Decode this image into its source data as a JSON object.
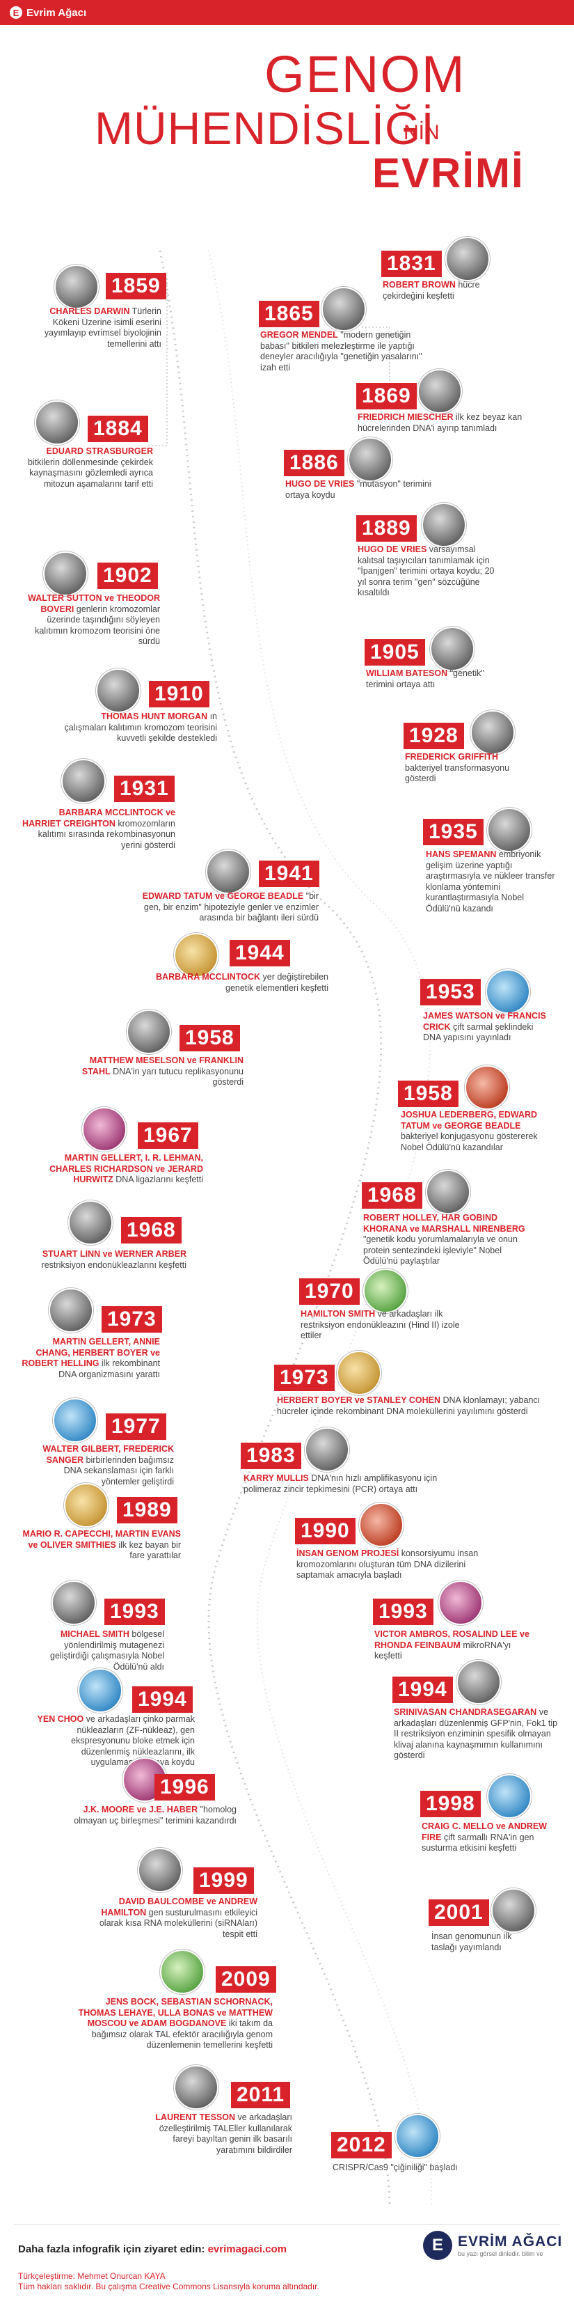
{
  "topbar": {
    "site_name": "Evrim Ağacı",
    "logo_letter": "E"
  },
  "title": {
    "line1": "GENOM",
    "line2": "MÜHENDİSLİĞİ",
    "suffix": "NİN",
    "line3": "EVRİMİ"
  },
  "events": {
    "e1859": {
      "year": "1859",
      "hl": "CHARLES DARWIN",
      "text": " Türlerin Kökeni Üzerine isimli eserini yayımlayıp evrimsel biyolojinin temellerini attı"
    },
    "e1831": {
      "year": "1831",
      "hl": "ROBERT BROWN",
      "text": " hücre çekirdeğini keşfetti"
    },
    "e1865": {
      "year": "1865",
      "hl": "GREGOR MENDEL",
      "text": " \"modern genetiğin babası\" bitkileri melezleştirme ile yaptığı deneyler aracılığıyla \"genetiğin yasalarını\" izah etti"
    },
    "e1884": {
      "year": "1884",
      "hl": "EDUARD STRASBURGER",
      "text": " bitkilerin döllenmesinde çekirdek kaynaşmasını gözlemledi ayrıca mitozun aşamalarını tarif etti"
    },
    "e1869": {
      "year": "1869",
      "hl": "FRIEDRICH MIESCHER",
      "text": " ilk kez beyaz kan hücrelerinden DNA'i ayırıp tanımladı"
    },
    "e1886": {
      "year": "1886",
      "hl": "HUGO DE VRIES",
      "text": " \"mutasyon\" terimini ortaya koydu"
    },
    "e1889": {
      "year": "1889",
      "hl": "HUGO DE VRIES",
      "text": " varsayımsal kalıtsal taşıyıcıları tanımlamak için \"İpanjgen\" terimini ortaya koydu; 20 yıl sonra terim \"gen\" sözcüğüne kısaltıldı"
    },
    "e1902": {
      "year": "1902",
      "hl": "WALTER SUTTON ve THEODOR BOVERI",
      "text": " genlerin kromozomlar üzerinde taşındığını söyleyen kalıtımın kromozom teorisini öne sürdü"
    },
    "e1905": {
      "year": "1905",
      "hl": "WILLIAM BATESON",
      "text": " \"genetik\" terimini ortaya attı"
    },
    "e1910": {
      "year": "1910",
      "hl": "THOMAS HUNT MORGAN",
      "text": " ın çalışmaları kalıtımın kromozom teorisini kuvvetli şekilde destekledi"
    },
    "e1928": {
      "year": "1928",
      "hl": "FREDERICK GRIFFITH",
      "text": " bakteriyel transformasyonu gösterdi"
    },
    "e1931": {
      "year": "1931",
      "hl": "BARBARA MCCLINTOCK ve HARRIET CREIGHTON",
      "text": " kromozomların kalıtımı sırasında rekombinasyonun yerini gösterdi"
    },
    "e1935": {
      "year": "1935",
      "hl": "HANS SPEMANN",
      "text": " embriyonik gelişim üzerine yaptığı araştırmasıyla ve nükleer transfer klonlama yöntemini kurantlaştırmasıyla Nobel Ödülü'nü kazandı"
    },
    "e1941": {
      "year": "1941",
      "hl": "EDWARD TATUM ve GEORGE BEADLE",
      "text": " \"bir gen, bir enzim\" hipoteziyle genler ve enzimler arasında bir bağlantı ileri sürdü"
    },
    "e1944": {
      "year": "1944",
      "hl": "BARBARA MCCLINTOCK",
      "text": " yer değiştirebilen genetik elementleri keşfetti"
    },
    "e1953": {
      "year": "1953",
      "hl": "JAMES WATSON ve FRANCIS CRICK",
      "text": " çift sarmal şeklindeki DNA yapısını yayınladı"
    },
    "e1958a": {
      "year": "1958",
      "hl": "MATTHEW MESELSON ve FRANKLIN STAHL",
      "text": " DNA'in yarı tutucu replikasyonunu gösterdi"
    },
    "e1958b": {
      "year": "1958",
      "hl": "JOSHUA LEDERBERG, EDWARD TATUM ve GEORGE BEADLE",
      "text": " bakteriyel konjugasyonu göstererek Nobel Ödülü'nü kazandılar"
    },
    "e1967": {
      "year": "1967",
      "hl": "MARTIN GELLERT, I. R. LEHMAN, CHARLES RICHARDSON ve JERARD HURWITZ",
      "text": " DNA ligazlarını keşfetti"
    },
    "e1968a": {
      "year": "1968",
      "hl": "ROBERT HOLLEY, HAR GOBIND KHORANA ve MARSHALL NIRENBERG",
      "text": " \"genetik kodu yorumlamalarıyla ve onun protein sentezindeki işleviyle\" Nobel Ödülü'nü paylaştılar"
    },
    "e1968b": {
      "year": "1968",
      "hl": "STUART LINN ve WERNER ARBER",
      "text": " restriksiyon endonükleazlarını keşfetti"
    },
    "e1970": {
      "year": "1970",
      "hl": "HAMILTON SMITH",
      "text": " ve arkadaşları ilk restriksiyon endonükleazını (Hind II) izole ettiler"
    },
    "e1973a": {
      "year": "1973",
      "hl": "MARTIN GELLERT, ANNIE CHANG, HERBERT BOYER ve ROBERT HELLING",
      "text": " ilk rekombinant DNA organizmasını yarattı"
    },
    "e1973b": {
      "year": "1973",
      "hl": "HERBERT BOYER ve STANLEY COHEN",
      "text": " DNA klonlamayı; yabancı hücreler içinde rekombinant DNA moleküllerini yayılımını gösterdi"
    },
    "e1977": {
      "year": "1977",
      "hl": "WALTER GILBERT, FREDERICK SANGER",
      "text": " birbirlerinden bağımsız DNA sekanslaması için farklı yöntemler geliştirdi"
    },
    "e1983": {
      "year": "1983",
      "hl": "KARRY MULLIS",
      "text": " DNA'nın hızlı amplifikasyonu için polimeraz zincir tepkimesini (PCR) ortaya attı"
    },
    "e1989": {
      "year": "1989",
      "hl": "MARIO R. CAPECCHI, MARTIN EVANS ve OLIVER SMITHIES",
      "text": " ilk kez bayan bir fare yarattılar"
    },
    "e1990": {
      "year": "1990",
      "hl": "İNSAN GENOM PROJESİ",
      "text": " konsorsiyumu insan kromozomlarını oluşturan tüm DNA dizilerini saptamak amacıyla başladı"
    },
    "e1993a": {
      "year": "1993",
      "hl": "MICHAEL SMITH",
      "text": " bölgesel yönlendirilmiş mutagenezi geliştirdiği çalışmasıyla Nobel Ödülü'nü aldı"
    },
    "e1993b": {
      "year": "1993",
      "hl": "VICTOR AMBROS, ROSALIND LEE ve RHONDA FEINBAUM",
      "text": " mikroRNA'yı keşfetti"
    },
    "e1994a": {
      "year": "1994",
      "hl": "YEN CHOO",
      "text": " ve arkadaşları çinko parmak nükleazların (ZF-nükleaz), gen ekspresyonunu bloke etmek için düzenlenmiş nükleazlarını, ilk uygulamasını ortaya koydu"
    },
    "e1994b": {
      "year": "1994",
      "hl": "SRINIVASAN CHANDRASEGARAN",
      "text": " ve arkadaşları düzenlenmiş GFP'nin, Fok1 tip II restriksiyon enziminin spesifik olmayan klivaj alanına kaynaşmımın kullanımını gösterdi"
    },
    "e1996": {
      "year": "1996",
      "hl": "J.K. MOORE ve J.E. HABER",
      "text": " \"homolog olmayan uç birleşmesi\" terimini kazandırdı"
    },
    "e1998": {
      "year": "1998",
      "hl": "CRAIG C. MELLO ve ANDREW FIRE",
      "text": " çift sarmallı RNA'in gen susturma etkisini keşfetti"
    },
    "e1999": {
      "year": "1999",
      "hl": "DAVID BAULCOMBE ve ANDREW HAMILTON",
      "text": " gen susturulmasını etkileyici olarak kısa RNA moleküllerini (siRNAları) tespit etti"
    },
    "e2001": {
      "year": "2001",
      "hl": "",
      "text": "İnsan genomunun ilk taslağı yayımlandı"
    },
    "e2009": {
      "year": "2009",
      "hl": "JENS BOCK, SEBASTIAN SCHORNACK, THOMAS LEHAYE, ULLA BONAS ve MATTHEW MOSCOU ve ADAM BOGDANOVE",
      "text": " iki takım da bağımsız olarak TAL efektör aracılığıyla genom düzenlemenin temellerini keşfetti"
    },
    "e2011": {
      "year": "2011",
      "hl": "LAURENT TESSON",
      "text": " ve arkadaşları özelleştirilmiş TALEller kullanılarak fareyi bayıltan genin ilk basarılı yaratımını bildirdiler"
    },
    "e2012": {
      "year": "2012",
      "hl": "",
      "text": "CRISPR/Cas9 \"çiğiniliği\" başladı"
    }
  },
  "footer": {
    "link_prefix": "Daha fazla infografik için ziyaret edin: ",
    "url": "evrimagaci.com",
    "credit_line1": "Türkçeleştirme: Mehmet Onurcan KAYA",
    "credit_line2": "Tüm hakları saklıdır. Bu çalışma Creative Commons Lisansıyla koruma altındadır.",
    "logo_name": "EVRİM AĞACI",
    "logo_tag": "bu yazı görsel dinledir. bilim ve"
  },
  "colors": {
    "accent": "#d8232a",
    "footer_brand": "#1f2a5c"
  }
}
